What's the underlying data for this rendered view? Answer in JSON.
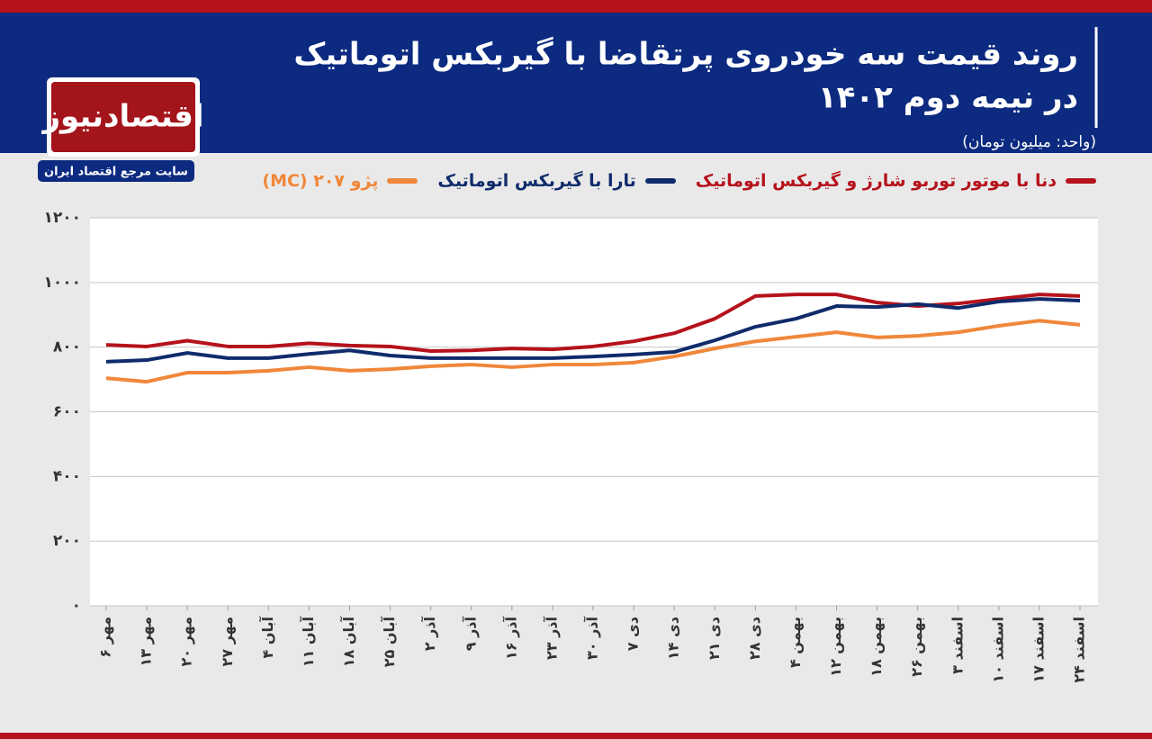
{
  "header": {
    "title_lines": [
      "روند قیمت سه خودروی پرتقاضا با گیربکس اتوماتیک",
      "در نیمه دوم ۱۴۰۲"
    ],
    "unit": "(واحد: میلیون تومان)",
    "logo": "اقتصادنیوز",
    "logo_tagline": "سایت مرجع اقتصاد ایران"
  },
  "chart_data": {
    "type": "line",
    "categories": [
      "۶ مهر",
      "۱۳ مهر",
      "۲۰ مهر",
      "۲۷ مهر",
      "۴ آبان",
      "۱۱ آبان",
      "۱۸ آبان",
      "۲۵ آبان",
      "۲ آذر",
      "۹ آذر",
      "۱۶ آذر",
      "۲۳ آذر",
      "۳۰ آذر",
      "۷ دی",
      "۱۴ دی",
      "۲۱ دی",
      "۲۸ دی",
      "۴ بهمن",
      "۱۲ بهمن",
      "۱۸ بهمن",
      "۲۶ بهمن",
      "۳ اسفند",
      "۱۰ اسفند",
      "۱۷ اسفند",
      "۲۴ اسفند"
    ],
    "series": [
      {
        "name": "دنا با موتور توربو شارژ و گیربکس اتوماتیک",
        "color": "#b5121b",
        "values": [
          807,
          802,
          820,
          802,
          802,
          812,
          805,
          802,
          788,
          790,
          796,
          793,
          802,
          818,
          843,
          888,
          958,
          963,
          963,
          938,
          927,
          935,
          949,
          963,
          958
        ]
      },
      {
        "name": "تارا با گیربکس اتوماتیک",
        "color": "#0f2b6b",
        "values": [
          755,
          760,
          782,
          766,
          766,
          779,
          790,
          774,
          766,
          766,
          766,
          766,
          771,
          777,
          785,
          821,
          863,
          888,
          927,
          924,
          933,
          921,
          941,
          949,
          944
        ]
      },
      {
        "name": "پژو ۲۰۷ (MC)",
        "color": "#f0873a",
        "values": [
          704,
          693,
          721,
          721,
          727,
          738,
          727,
          732,
          741,
          746,
          738,
          746,
          746,
          752,
          771,
          796,
          818,
          832,
          846,
          830,
          835,
          846,
          866,
          882,
          869
        ]
      }
    ],
    "ylim": [
      0,
      1200
    ],
    "yticks": [
      {
        "value": 0,
        "label": "۰"
      },
      {
        "value": 200,
        "label": "۲۰۰"
      },
      {
        "value": 400,
        "label": "۴۰۰"
      },
      {
        "value": 600,
        "label": "۶۰۰"
      },
      {
        "value": 800,
        "label": "۸۰۰"
      },
      {
        "value": 1000,
        "label": "۱۰۰۰"
      },
      {
        "value": 1200,
        "label": "۱۲۰۰"
      }
    ],
    "grid": true
  }
}
